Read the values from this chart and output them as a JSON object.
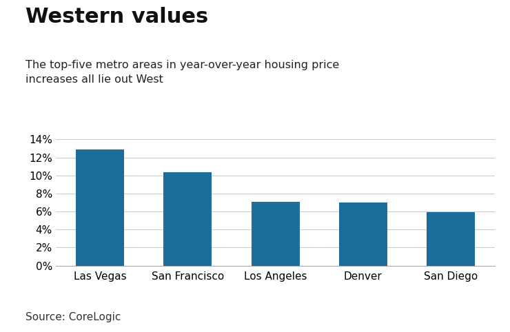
{
  "title": "Western values",
  "subtitle": "The top-five metro areas in year-over-year housing price\nincreases all lie out West",
  "source": "Source: CoreLogic",
  "categories": [
    "Las Vegas",
    "San Francisco",
    "Los Angeles",
    "Denver",
    "San Diego"
  ],
  "values": [
    0.129,
    0.104,
    0.071,
    0.07,
    0.059
  ],
  "bar_color": "#1a6f9a",
  "background_color": "#ffffff",
  "ylim": [
    0,
    0.14
  ],
  "yticks": [
    0.0,
    0.02,
    0.04,
    0.06,
    0.08,
    0.1,
    0.12,
    0.14
  ],
  "title_fontsize": 22,
  "subtitle_fontsize": 11.5,
  "source_fontsize": 11,
  "tick_fontsize": 11,
  "bar_width": 0.55
}
